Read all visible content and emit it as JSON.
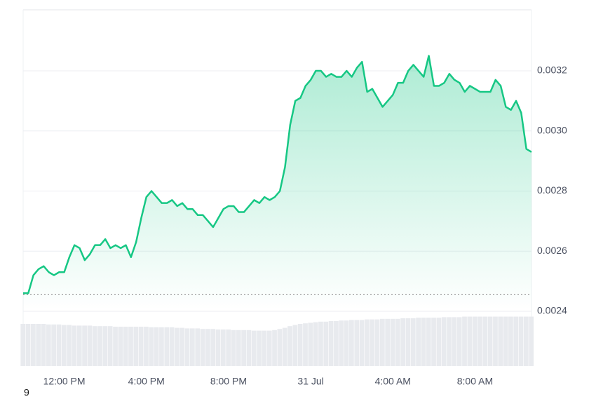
{
  "chart_data": {
    "type": "line",
    "categories": [
      null,
      null,
      null,
      null,
      null,
      null,
      null,
      null,
      "12:00 PM",
      null,
      null,
      null,
      null,
      null,
      null,
      null,
      null,
      null,
      null,
      null,
      null,
      null,
      null,
      null,
      "4:00 PM",
      null,
      null,
      null,
      null,
      null,
      null,
      null,
      null,
      null,
      null,
      null,
      null,
      null,
      null,
      null,
      "8:00 PM",
      null,
      null,
      null,
      null,
      null,
      null,
      null,
      null,
      null,
      null,
      null,
      null,
      null,
      null,
      null,
      "31 Jul",
      null,
      null,
      null,
      null,
      null,
      null,
      null,
      null,
      null,
      null,
      null,
      null,
      null,
      null,
      null,
      "4:00 AM",
      null,
      null,
      null,
      null,
      null,
      null,
      null,
      null,
      null,
      null,
      null,
      null,
      null,
      null,
      null,
      "8:00 AM",
      null,
      null,
      null,
      null,
      null,
      null,
      null,
      null,
      null,
      null,
      null
    ],
    "series": [
      {
        "color": "#16c784",
        "values": [
          0.00246,
          0.00246,
          0.00252,
          0.00254,
          0.00255,
          0.00253,
          0.00252,
          0.00253,
          0.00253,
          0.00258,
          0.00262,
          0.00261,
          0.00257,
          0.00259,
          0.00262,
          0.00262,
          0.00264,
          0.00261,
          0.00262,
          0.00261,
          0.00262,
          0.00258,
          0.00263,
          0.00271,
          0.00278,
          0.0028,
          0.00278,
          0.00276,
          0.00276,
          0.00277,
          0.00275,
          0.00276,
          0.00274,
          0.00274,
          0.00272,
          0.00272,
          0.0027,
          0.00268,
          0.00271,
          0.00274,
          0.00275,
          0.00275,
          0.00273,
          0.00273,
          0.00275,
          0.00277,
          0.00276,
          0.00278,
          0.00277,
          0.00278,
          0.0028,
          0.00288,
          0.00302,
          0.0031,
          0.00311,
          0.00315,
          0.00317,
          0.0032,
          0.0032,
          0.00318,
          0.00319,
          0.00318,
          0.00318,
          0.0032,
          0.00318,
          0.00321,
          0.00323,
          0.00313,
          0.00314,
          0.00311,
          0.00308,
          0.0031,
          0.00312,
          0.00316,
          0.00316,
          0.0032,
          0.00322,
          0.0032,
          0.00318,
          0.00325,
          0.00315,
          0.00315,
          0.00316,
          0.00319,
          0.00317,
          0.00316,
          0.00313,
          0.00315,
          0.00314,
          0.00313,
          0.00313,
          0.00313,
          0.00317,
          0.00315,
          0.00308,
          0.00307,
          0.0031,
          0.00306,
          0.00294,
          0.00293
        ]
      }
    ],
    "baseline": 0.002455,
    "volume": {
      "color": "#e8eaee",
      "ylim": [
        0,
        100
      ],
      "values": [
        75,
        75,
        75,
        75,
        75,
        74,
        74,
        74,
        73,
        73,
        72,
        72,
        72,
        72,
        71,
        71,
        71,
        71,
        70,
        70,
        70,
        70,
        70,
        70,
        70,
        69,
        69,
        69,
        69,
        69,
        68,
        68,
        67,
        67,
        67,
        66,
        66,
        66,
        65,
        65,
        65,
        64,
        64,
        64,
        64,
        63,
        63,
        63,
        63,
        64,
        66,
        68,
        71,
        73,
        75,
        76,
        77,
        78,
        79,
        79,
        80,
        80,
        81,
        81,
        82,
        82,
        82,
        83,
        83,
        83,
        84,
        84,
        84,
        84,
        85,
        85,
        85,
        86,
        86,
        86,
        86,
        86,
        87,
        87,
        87,
        87,
        88,
        88,
        88,
        88,
        88,
        88,
        88,
        88,
        88,
        88,
        88,
        88,
        88,
        88
      ]
    },
    "ylim": [
      0.002218,
      0.003403
    ],
    "yticks": [
      0.0024,
      0.0026,
      0.0028,
      {
        "value": 0.003,
        "label": "0.0030"
      },
      0.0032
    ],
    "grid": true,
    "footnote": "9"
  }
}
